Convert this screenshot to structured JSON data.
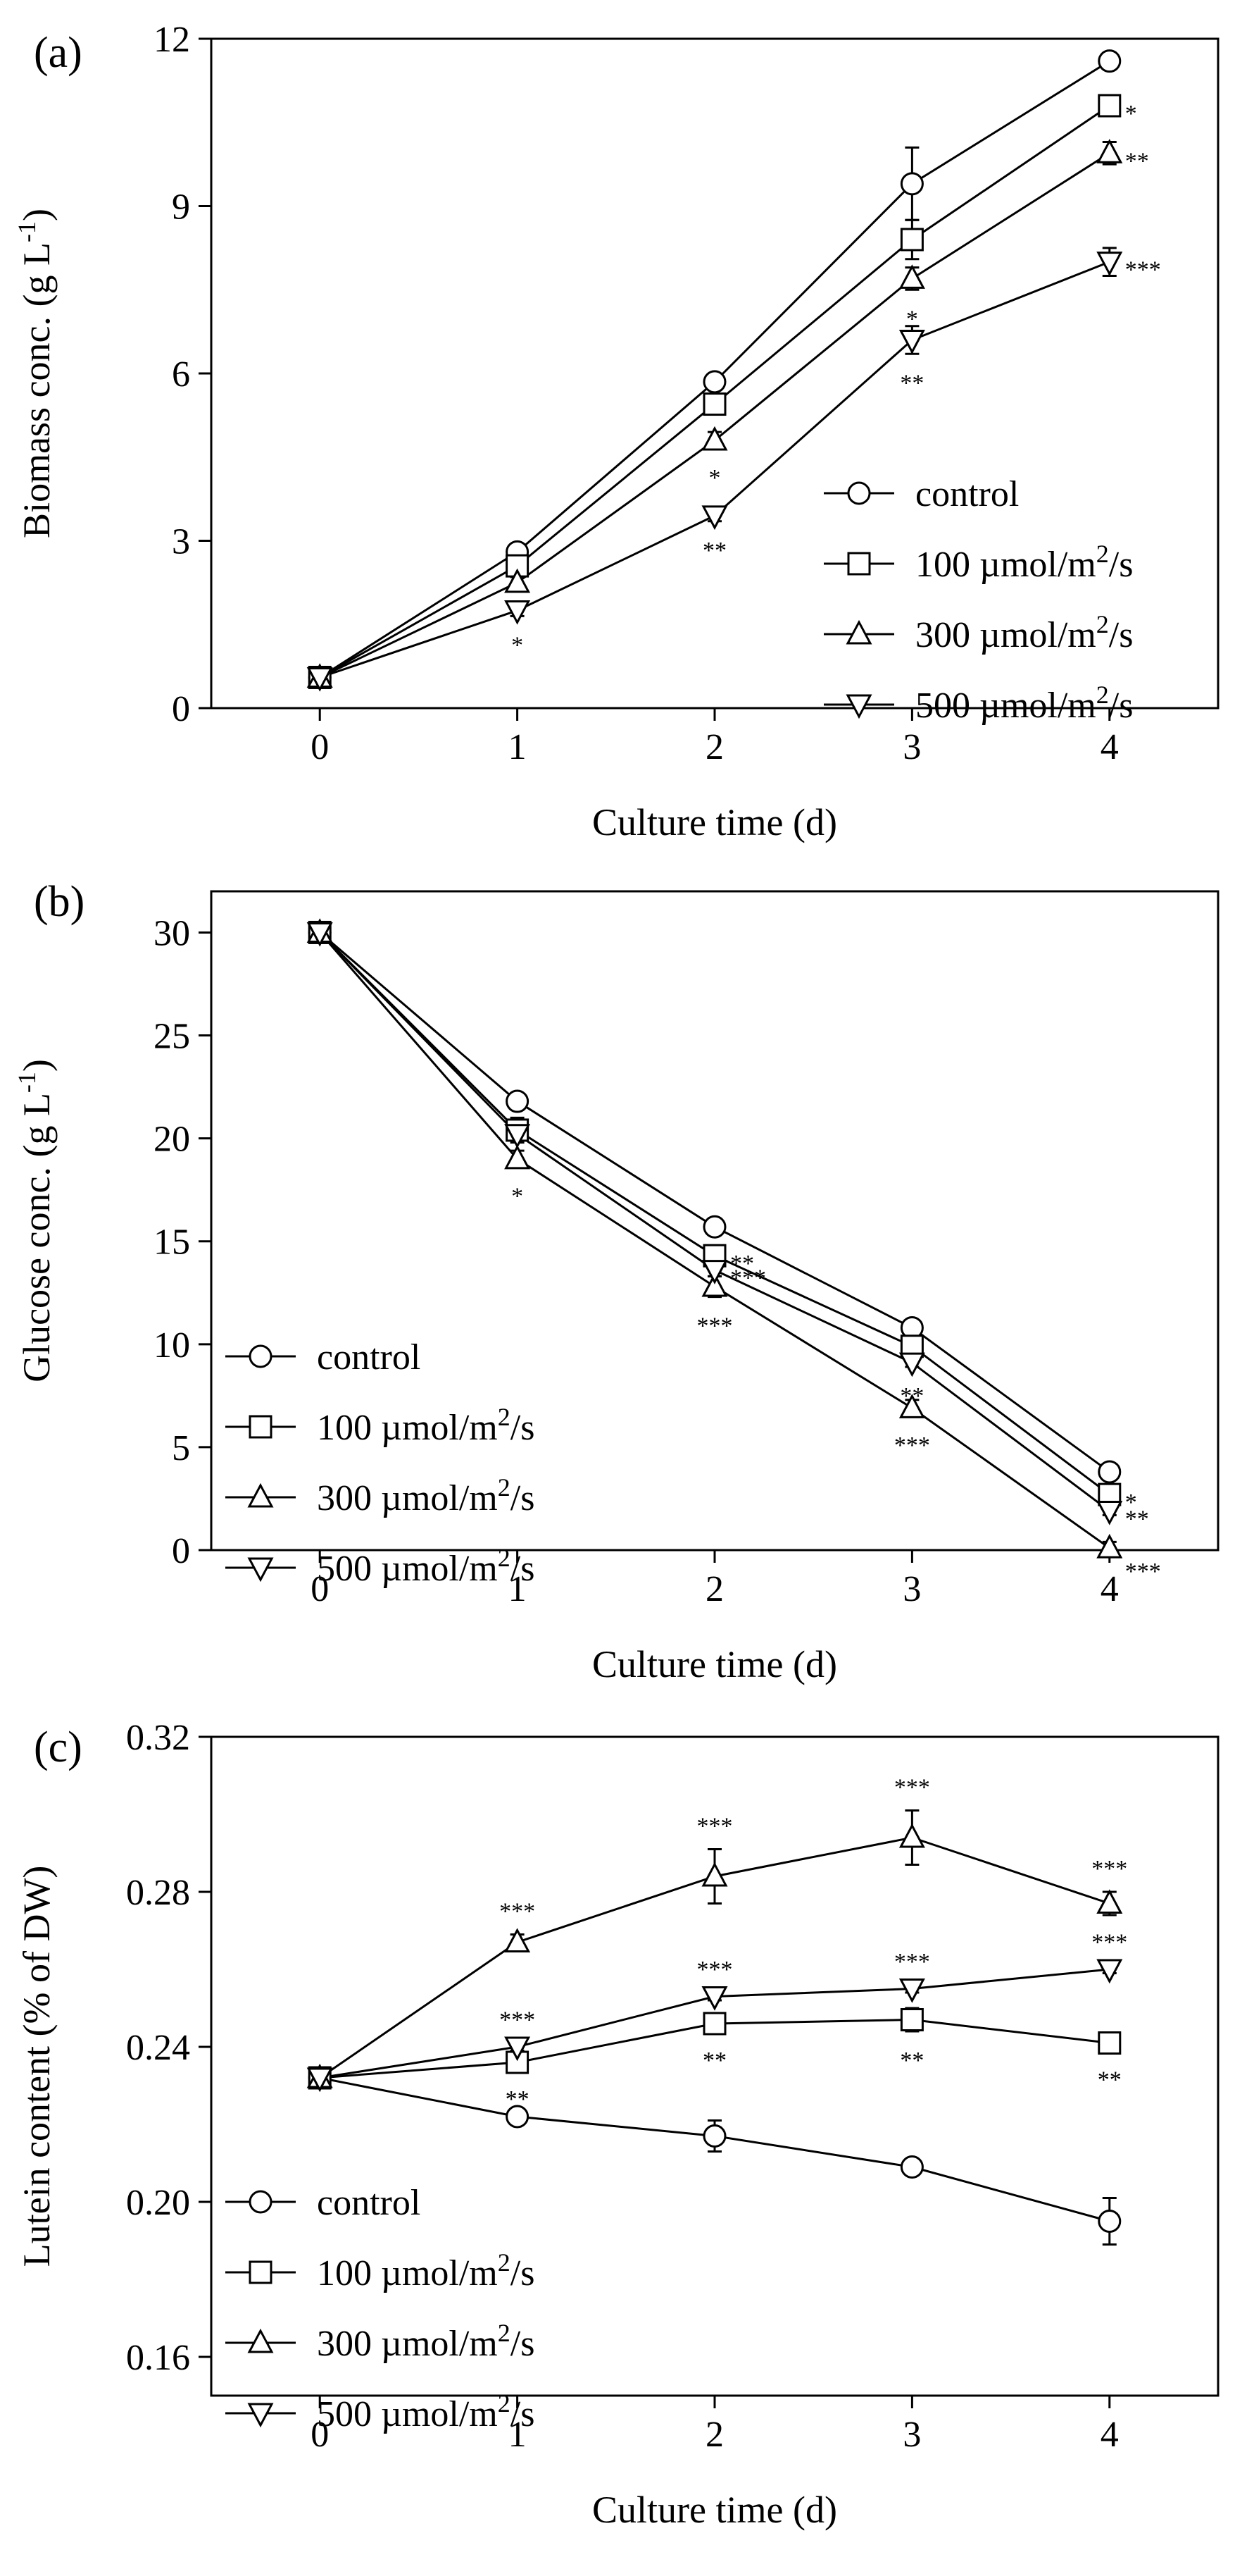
{
  "chart_data": [
    {
      "panel_label": "(a)",
      "type": "line",
      "xlabel": "Culture time (d)",
      "ylabel": {
        "main": "Biomass conc. (g L",
        "sup": "-1",
        "close": ")"
      },
      "x": [
        0,
        1,
        2,
        3,
        4
      ],
      "xticks": [
        "0",
        "1",
        "2",
        "3",
        "4"
      ],
      "xlim": [
        -0.55,
        4.55
      ],
      "ylim": [
        0,
        12
      ],
      "yticks": [
        "0",
        "3",
        "6",
        "9",
        "12"
      ],
      "series": [
        {
          "name": "control",
          "marker": "circle",
          "values": [
            0.55,
            2.8,
            5.85,
            9.4,
            11.6
          ],
          "errors": [
            0.05,
            0.1,
            0.1,
            0.65,
            0.1
          ]
        },
        {
          "name": "100 µmol/m²/s",
          "marker": "square",
          "values": [
            0.55,
            2.55,
            5.45,
            8.4,
            10.8
          ],
          "errors": [
            0.05,
            0.1,
            0.15,
            0.35,
            0.1
          ]
        },
        {
          "name": "300 µmol/m²/s",
          "marker": "triangle-up",
          "values": [
            0.55,
            2.25,
            4.8,
            7.7,
            9.95
          ],
          "errors": [
            0.05,
            0.1,
            0.15,
            0.2,
            0.2
          ]
        },
        {
          "name": "500 µmol/m²/s",
          "marker": "triangle-down",
          "values": [
            0.55,
            1.75,
            3.45,
            6.6,
            8.0
          ],
          "errors": [
            0.05,
            0.1,
            0.1,
            0.25,
            0.25
          ]
        }
      ],
      "significance": [
        {
          "series": 1,
          "x": 4,
          "text": "*",
          "pos": "right"
        },
        {
          "series": 2,
          "x": 4,
          "text": "**",
          "pos": "right"
        },
        {
          "series": 3,
          "x": 4,
          "text": "***",
          "pos": "right"
        },
        {
          "series": 2,
          "x": 3,
          "text": "*",
          "pos": "below"
        },
        {
          "series": 3,
          "x": 3,
          "text": "**",
          "pos": "below"
        },
        {
          "series": 2,
          "x": 2,
          "text": "*",
          "pos": "below"
        },
        {
          "series": 3,
          "x": 2,
          "text": "**",
          "pos": "below"
        },
        {
          "series": 3,
          "x": 1,
          "text": "*",
          "pos": "below"
        }
      ],
      "legend": {
        "placement": "bottom-right",
        "labels": [
          {
            "text": "control"
          },
          {
            "text": "100 µmol/m",
            "sup": "2",
            "tail": "/s"
          },
          {
            "text": "300 µmol/m",
            "sup": "2",
            "tail": "/s"
          },
          {
            "text": "500 µmol/m",
            "sup": "2",
            "tail": "/s"
          }
        ]
      }
    },
    {
      "panel_label": "(b)",
      "type": "line",
      "xlabel": "Culture time (d)",
      "ylabel": {
        "main": "Glucose conc. (g L",
        "sup": "-1",
        "close": ")"
      },
      "x": [
        0,
        1,
        2,
        3,
        4
      ],
      "xticks": [
        "0",
        "1",
        "2",
        "3",
        "4"
      ],
      "xlim": [
        -0.55,
        4.55
      ],
      "ylim": [
        0,
        32
      ],
      "yticks": [
        "0",
        "5",
        "10",
        "15",
        "20",
        "25",
        "30"
      ],
      "series": [
        {
          "name": "control",
          "marker": "circle",
          "values": [
            30.0,
            21.8,
            15.7,
            10.8,
            3.8
          ],
          "errors": [
            0.1,
            0.2,
            0.2,
            0.2,
            0.2
          ]
        },
        {
          "name": "100 µmol/m²/s",
          "marker": "square",
          "values": [
            30.0,
            20.4,
            14.3,
            9.9,
            2.7
          ],
          "errors": [
            0.1,
            0.6,
            0.2,
            0.2,
            0.2
          ]
        },
        {
          "name": "300 µmol/m²/s",
          "marker": "triangle-up",
          "values": [
            30.0,
            19.0,
            12.8,
            6.9,
            0.1
          ],
          "errors": [
            0.1,
            0.4,
            0.5,
            0.4,
            0.3
          ]
        },
        {
          "name": "500 µmol/m²/s",
          "marker": "triangle-down",
          "values": [
            30.0,
            20.2,
            13.6,
            9.1,
            1.9
          ],
          "errors": [
            0.1,
            0.3,
            0.3,
            0.2,
            0.2
          ]
        }
      ],
      "significance": [
        {
          "series": 2,
          "x": 1,
          "text": "*",
          "pos": "below"
        },
        {
          "series": 1,
          "x": 2,
          "text": "**",
          "pos": "right"
        },
        {
          "series": 3,
          "x": 2,
          "text": "***",
          "pos": "right"
        },
        {
          "series": 2,
          "x": 2,
          "text": "***",
          "pos": "below"
        },
        {
          "series": 3,
          "x": 3,
          "text": "**",
          "pos": "below"
        },
        {
          "series": 2,
          "x": 3,
          "text": "***",
          "pos": "below"
        },
        {
          "series": 1,
          "x": 4,
          "text": "*",
          "pos": "right"
        },
        {
          "series": 3,
          "x": 4,
          "text": "**",
          "pos": "right"
        },
        {
          "series": 2,
          "x": 4,
          "text": "***",
          "pos": "above-right"
        }
      ],
      "legend": {
        "placement": "bottom-left",
        "labels": [
          {
            "text": "control"
          },
          {
            "text": "100 µmol/m",
            "sup": "2",
            "tail": "/s"
          },
          {
            "text": "300 µmol/m",
            "sup": "2",
            "tail": "/s"
          },
          {
            "text": "500 µmol/m",
            "sup": "2",
            "tail": "/s"
          }
        ]
      }
    },
    {
      "panel_label": "(c)",
      "type": "line",
      "xlabel": "Culture time (d)",
      "ylabel": {
        "main": "Lutein content (% of DW)"
      },
      "x": [
        0,
        1,
        2,
        3,
        4
      ],
      "xticks": [
        "0",
        "1",
        "2",
        "3",
        "4"
      ],
      "xlim": [
        -0.55,
        4.55
      ],
      "ylim": [
        0.15,
        0.32
      ],
      "yticks": [
        "0.16",
        "0.20",
        "0.24",
        "0.28",
        "0.32"
      ],
      "series": [
        {
          "name": "control",
          "marker": "circle",
          "values": [
            0.232,
            0.222,
            0.217,
            0.209,
            0.195
          ],
          "errors": [
            0.002,
            0.001,
            0.004,
            0.001,
            0.006
          ]
        },
        {
          "name": "100 µmol/m²/s",
          "marker": "square",
          "values": [
            0.232,
            0.236,
            0.246,
            0.247,
            0.241
          ],
          "errors": [
            0.002,
            0.002,
            0.002,
            0.003,
            0.002
          ]
        },
        {
          "name": "300 µmol/m²/s",
          "marker": "triangle-up",
          "values": [
            0.232,
            0.267,
            0.284,
            0.294,
            0.277
          ],
          "errors": [
            0.002,
            0.002,
            0.007,
            0.007,
            0.003
          ]
        },
        {
          "name": "500 µmol/m²/s",
          "marker": "triangle-down",
          "values": [
            0.232,
            0.24,
            0.253,
            0.255,
            0.26
          ],
          "errors": [
            0.002,
            0.001,
            0.001,
            0.001,
            0.001
          ]
        }
      ],
      "significance": [
        {
          "series": 2,
          "x": 1,
          "text": "***",
          "pos": "above"
        },
        {
          "series": 2,
          "x": 2,
          "text": "***",
          "pos": "above"
        },
        {
          "series": 2,
          "x": 3,
          "text": "***",
          "pos": "above"
        },
        {
          "series": 2,
          "x": 4,
          "text": "***",
          "pos": "above"
        },
        {
          "series": 3,
          "x": 1,
          "text": "***",
          "pos": "above"
        },
        {
          "series": 3,
          "x": 2,
          "text": "***",
          "pos": "above"
        },
        {
          "series": 3,
          "x": 3,
          "text": "***",
          "pos": "above"
        },
        {
          "series": 3,
          "x": 4,
          "text": "***",
          "pos": "above"
        },
        {
          "series": 1,
          "x": 1,
          "text": "**",
          "pos": "below"
        },
        {
          "series": 1,
          "x": 2,
          "text": "**",
          "pos": "below"
        },
        {
          "series": 1,
          "x": 3,
          "text": "**",
          "pos": "below"
        },
        {
          "series": 1,
          "x": 4,
          "text": "**",
          "pos": "below"
        }
      ],
      "legend": {
        "placement": "bottom-left",
        "labels": [
          {
            "text": "control"
          },
          {
            "text": "100 µmol/m",
            "sup": "2",
            "tail": "/s"
          },
          {
            "text": "300 µmol/m",
            "sup": "2",
            "tail": "/s"
          },
          {
            "text": "500 µmol/m",
            "sup": "2",
            "tail": "/s"
          }
        ]
      }
    }
  ]
}
